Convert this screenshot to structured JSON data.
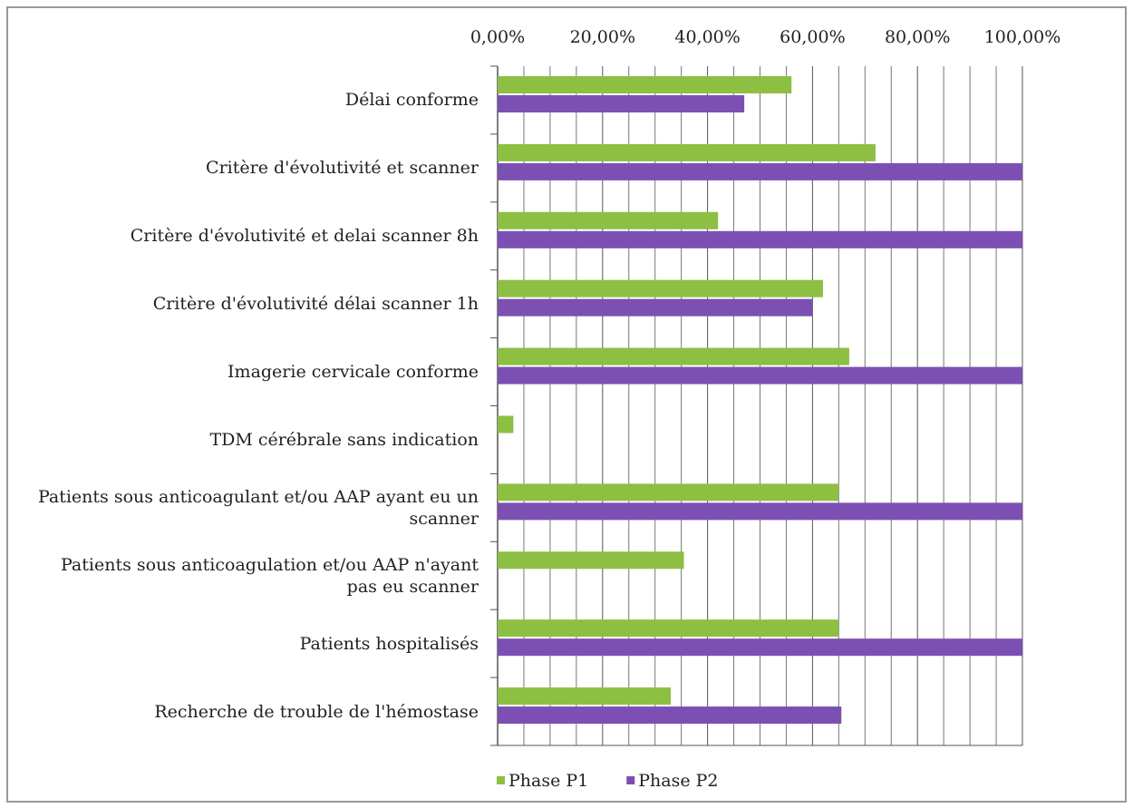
{
  "chart_data": {
    "type": "barh",
    "categories": [
      "Délai conforme",
      "Critère d'évolutivité et scanner",
      "Critère d'évolutivité et delai scanner 8h",
      "Critère d'évolutivité délai scanner 1h",
      "Imagerie cervicale conforme",
      "TDM cérébrale sans indication",
      "Patients sous anticoagulant et/ou AAP ayant eu un scanner",
      "Patients sous anticoagulation et/ou AAP n'ayant pas eu scanner",
      "Patients hospitalisés",
      "Recherche de trouble de l'hémostase"
    ],
    "series": [
      {
        "name": "Phase P1",
        "color": "#8dbf43",
        "values": [
          56,
          72,
          42,
          62,
          67,
          3,
          65,
          35.5,
          65,
          33
        ]
      },
      {
        "name": "Phase P2",
        "color": "#7c50b2",
        "values": [
          47,
          100,
          100,
          60,
          100,
          0,
          100,
          0,
          100,
          65.5
        ]
      }
    ],
    "xlim": [
      0,
      100
    ],
    "xticks": [
      {
        "value": 0,
        "label": "0,00%"
      },
      {
        "value": 20,
        "label": "20,00%"
      },
      {
        "value": 40,
        "label": "40,00%"
      },
      {
        "value": 60,
        "label": "60,00%"
      },
      {
        "value": 80,
        "label": "80,00%"
      },
      {
        "value": 100,
        "label": "100,00%"
      }
    ],
    "x_minor_ticks": [
      5,
      10,
      15,
      25,
      30,
      35,
      45,
      50,
      55,
      65,
      70,
      75,
      85,
      90,
      95
    ],
    "grid": true,
    "legend": "bottom"
  }
}
